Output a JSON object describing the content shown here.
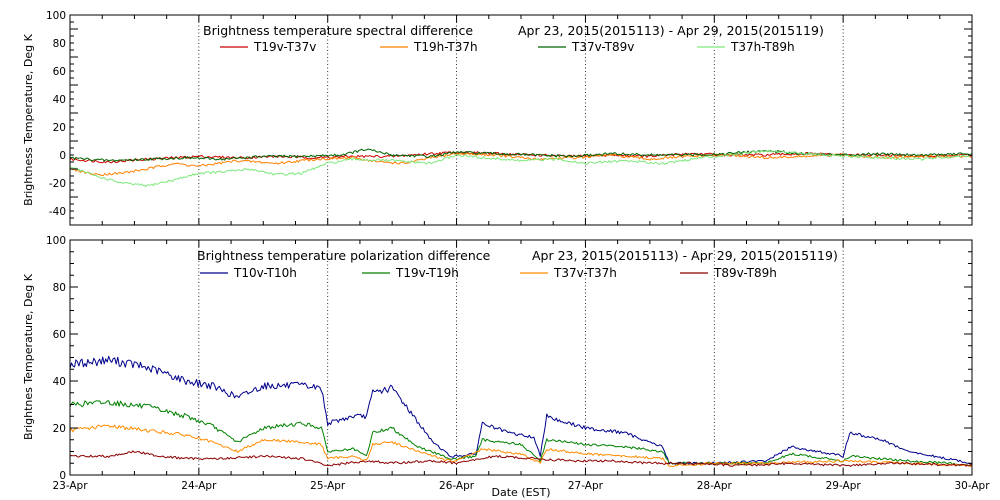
{
  "chart_data": [
    {
      "type": "line",
      "title": "Brightness temperature spectral difference",
      "date_range": "Apr 23, 2015(2015113) - Apr 29, 2015(2015119)",
      "ylabel": "Brightness Temperature, Deg K",
      "xlabel": "",
      "ylim": [
        -50,
        100
      ],
      "yticks": [
        -40,
        -20,
        0,
        20,
        40,
        60,
        80,
        100
      ],
      "xlim": [
        0,
        7
      ],
      "xticks": [
        0,
        1,
        2,
        3,
        4,
        5,
        6,
        7
      ],
      "xtick_labels": [
        "",
        "",
        "",
        "",
        "",
        "",
        "",
        ""
      ],
      "x_units": "days since Apr 23, 2015",
      "grid": "dotted vertical at each day",
      "legend": "top, horizontal",
      "series": [
        {
          "name": "T19v-T37v",
          "color": "#cc0000",
          "x": [
            0,
            0.3,
            0.6,
            0.8,
            1.0,
            1.3,
            1.6,
            1.9,
            2.2,
            2.5,
            2.8,
            3.0,
            3.3,
            3.6,
            3.9,
            4.2,
            4.5,
            4.8,
            5.1,
            5.4,
            5.7,
            6.0,
            6.3,
            6.6,
            7.0
          ],
          "y": [
            -3,
            -5,
            -3,
            -2,
            -1,
            -2,
            -1,
            -2,
            -1,
            -1,
            1,
            2,
            1,
            0,
            -1,
            0,
            -1,
            1,
            0,
            0,
            1,
            0,
            0,
            -1,
            0
          ]
        },
        {
          "name": "T19h-T37h",
          "color": "#ff7f00",
          "x": [
            0,
            0.2,
            0.4,
            0.6,
            0.8,
            1.0,
            1.3,
            1.6,
            1.9,
            2.2,
            2.4,
            2.6,
            2.8,
            3.0,
            3.3,
            3.6,
            3.9,
            4.2,
            4.5,
            4.8,
            5.1,
            5.4,
            5.7,
            6.0,
            6.3,
            6.6,
            7.0
          ],
          "y": [
            -10,
            -14,
            -13,
            -10,
            -6,
            -8,
            -4,
            -6,
            -3,
            -2,
            -5,
            -6,
            -2,
            1,
            0,
            -3,
            -2,
            0,
            -3,
            -1,
            0,
            -2,
            -1,
            0,
            -2,
            -1,
            -1
          ]
        },
        {
          "name": "T37v-T89v",
          "color": "#006400",
          "x": [
            0,
            0.3,
            0.6,
            0.9,
            1.2,
            1.5,
            1.8,
            2.1,
            2.3,
            2.5,
            2.8,
            3.0,
            3.3,
            3.6,
            3.9,
            4.2,
            4.5,
            4.8,
            5.1,
            5.4,
            5.7,
            6.0,
            6.3,
            6.6,
            7.0
          ],
          "y": [
            -2,
            -4,
            -3,
            -2,
            -3,
            -1,
            -1,
            0,
            4,
            0,
            -1,
            2,
            1,
            0,
            -1,
            1,
            0,
            0,
            1,
            3,
            1,
            0,
            1,
            0,
            1
          ]
        },
        {
          "name": "T37h-T89h",
          "color": "#7ee87e",
          "x": [
            0,
            0.2,
            0.4,
            0.6,
            0.8,
            1.0,
            1.2,
            1.4,
            1.6,
            1.8,
            2.0,
            2.2,
            2.5,
            2.8,
            3.0,
            3.2,
            3.5,
            3.8,
            4.0,
            4.3,
            4.6,
            4.9,
            5.1,
            5.4,
            5.7,
            6.0,
            6.3,
            6.6,
            7.0
          ],
          "y": [
            -8,
            -15,
            -20,
            -22,
            -18,
            -13,
            -12,
            -10,
            -14,
            -13,
            -6,
            -3,
            -4,
            -6,
            0,
            -2,
            -4,
            -3,
            -6,
            -4,
            -6,
            -2,
            0,
            3,
            1,
            -1,
            -2,
            -3,
            0
          ]
        }
      ]
    },
    {
      "type": "line",
      "title": "Brightness temperature polarization difference",
      "date_range": "Apr 23, 2015(2015113) - Apr 29, 2015(2015119)",
      "ylabel": "Brightnes Temperature, Deg K",
      "xlabel": "Date (EST)",
      "ylim": [
        0,
        100
      ],
      "yticks": [
        0,
        20,
        40,
        60,
        80,
        100
      ],
      "xlim": [
        0,
        7
      ],
      "xticks": [
        0,
        1,
        2,
        3,
        4,
        5,
        6,
        7
      ],
      "xtick_labels": [
        "23-Apr",
        "24-Apr",
        "25-Apr",
        "26-Apr",
        "27-Apr",
        "28-Apr",
        "29-Apr",
        "30-Apr"
      ],
      "x_units": "days since Apr 23, 2015",
      "grid": "dotted vertical at each day",
      "legend": "top, horizontal",
      "series": [
        {
          "name": "T10v-T10h",
          "color": "#00008b",
          "x": [
            0,
            0.3,
            0.5,
            0.7,
            0.9,
            1.1,
            1.3,
            1.5,
            1.8,
            1.95,
            2.0,
            2.2,
            2.3,
            2.35,
            2.5,
            2.6,
            2.8,
            2.95,
            3.0,
            3.15,
            3.2,
            3.4,
            3.6,
            3.65,
            3.7,
            3.75,
            4.0,
            4.3,
            4.6,
            4.65,
            4.7,
            5.0,
            5.4,
            5.6,
            6.0,
            6.05,
            6.3,
            6.5,
            6.8,
            7.0
          ],
          "y": [
            47,
            49,
            47,
            44,
            40,
            38,
            33,
            38,
            38,
            37,
            22,
            25,
            25,
            35,
            37,
            30,
            15,
            8,
            8,
            9,
            22,
            18,
            16,
            8,
            26,
            24,
            20,
            18,
            12,
            5,
            5,
            5,
            6,
            12,
            8,
            18,
            15,
            10,
            7,
            5
          ]
        },
        {
          "name": "T19v-T19h",
          "color": "#008000",
          "x": [
            0,
            0.3,
            0.6,
            0.9,
            1.1,
            1.3,
            1.5,
            1.8,
            1.95,
            2.0,
            2.2,
            2.3,
            2.35,
            2.5,
            2.7,
            2.95,
            3.0,
            3.15,
            3.2,
            3.5,
            3.65,
            3.7,
            4.0,
            4.3,
            4.6,
            4.65,
            4.7,
            5.0,
            5.4,
            5.6,
            6.0,
            6.05,
            6.5,
            6.8,
            7.0
          ],
          "y": [
            30,
            31,
            29,
            25,
            21,
            14,
            20,
            22,
            20,
            10,
            11,
            8,
            18,
            20,
            12,
            7,
            7,
            8,
            15,
            13,
            6,
            15,
            13,
            12,
            10,
            5,
            5,
            5,
            5,
            9,
            6,
            8,
            6,
            5,
            4
          ]
        },
        {
          "name": "T37v-T37h",
          "color": "#ff8c00",
          "x": [
            0,
            0.3,
            0.6,
            0.9,
            1.1,
            1.3,
            1.5,
            1.8,
            1.95,
            2.0,
            2.2,
            2.3,
            2.35,
            2.5,
            2.7,
            2.95,
            3.0,
            3.2,
            3.5,
            3.65,
            3.7,
            4.0,
            4.3,
            4.6,
            4.65,
            4.7,
            5.0,
            5.4,
            6.0,
            6.5,
            7.0
          ],
          "y": [
            19,
            21,
            19,
            17,
            14,
            10,
            15,
            14,
            13,
            7,
            8,
            6,
            13,
            14,
            10,
            6,
            6,
            11,
            9,
            5,
            11,
            9,
            8,
            7,
            4,
            4,
            5,
            5,
            6,
            5,
            4
          ]
        },
        {
          "name": "T89v-T89h",
          "color": "#8b0000",
          "x": [
            0,
            0.3,
            0.5,
            0.7,
            0.9,
            1.2,
            1.5,
            1.8,
            2.0,
            2.3,
            2.5,
            2.8,
            3.0,
            3.3,
            3.6,
            3.9,
            4.2,
            4.5,
            4.8,
            5.2,
            5.6,
            6.0,
            6.4,
            7.0
          ],
          "y": [
            8,
            8,
            10,
            8,
            7,
            7,
            8,
            7,
            4,
            6,
            5,
            6,
            5,
            8,
            7,
            6,
            6,
            5,
            5,
            4,
            5,
            4,
            5,
            4
          ]
        }
      ]
    }
  ]
}
